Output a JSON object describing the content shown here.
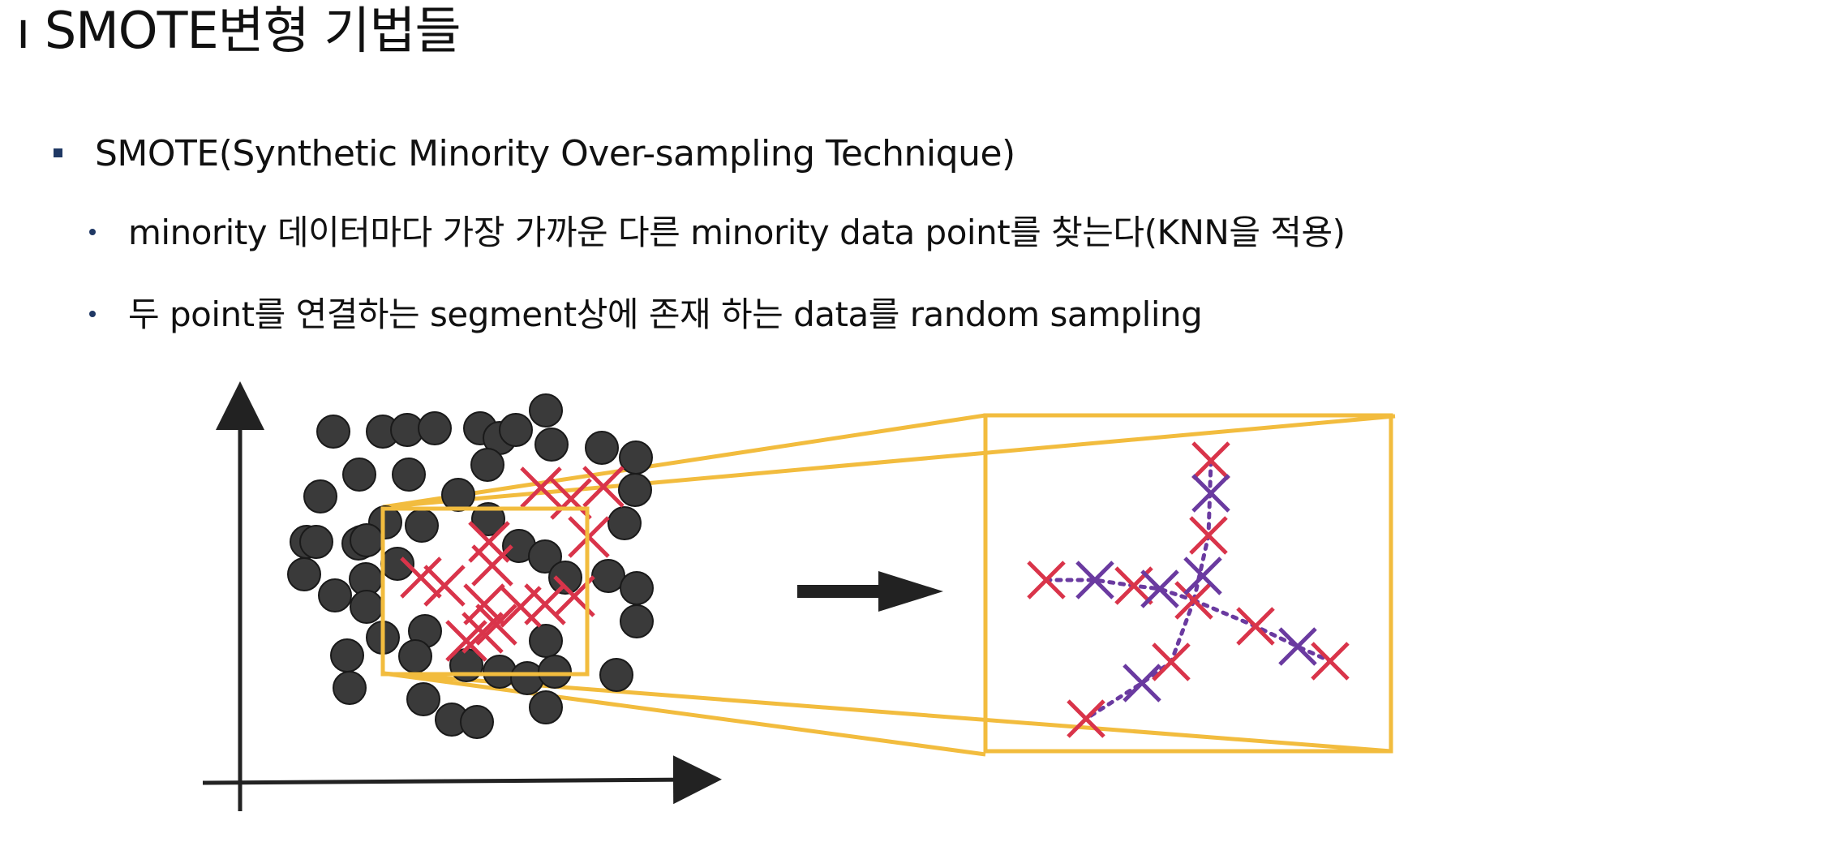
{
  "title": "ı SMOTE변형 기법들",
  "bullets": [
    {
      "level": 1,
      "text": "SMOTE(Synthetic Minority Over-sampling Technique)"
    },
    {
      "level": 2,
      "text": "minority 데이터마다 가장 가까운 다른  minority data point를 찾는다(KNN을 적용)"
    },
    {
      "level": 2,
      "text": "두 point를 연결하는 segment상에 존재 하는 data를 random sampling"
    }
  ],
  "colors": {
    "majority": "#3a3a3a",
    "minority": "#d9344a",
    "synthetic": "#6a3aa0",
    "zoom": "#f2bc3e",
    "axis": "#222222",
    "bullet": "#1f3864"
  },
  "icons": {
    "arrow": "right-arrow-icon",
    "axes": "xy-axes-icon"
  }
}
